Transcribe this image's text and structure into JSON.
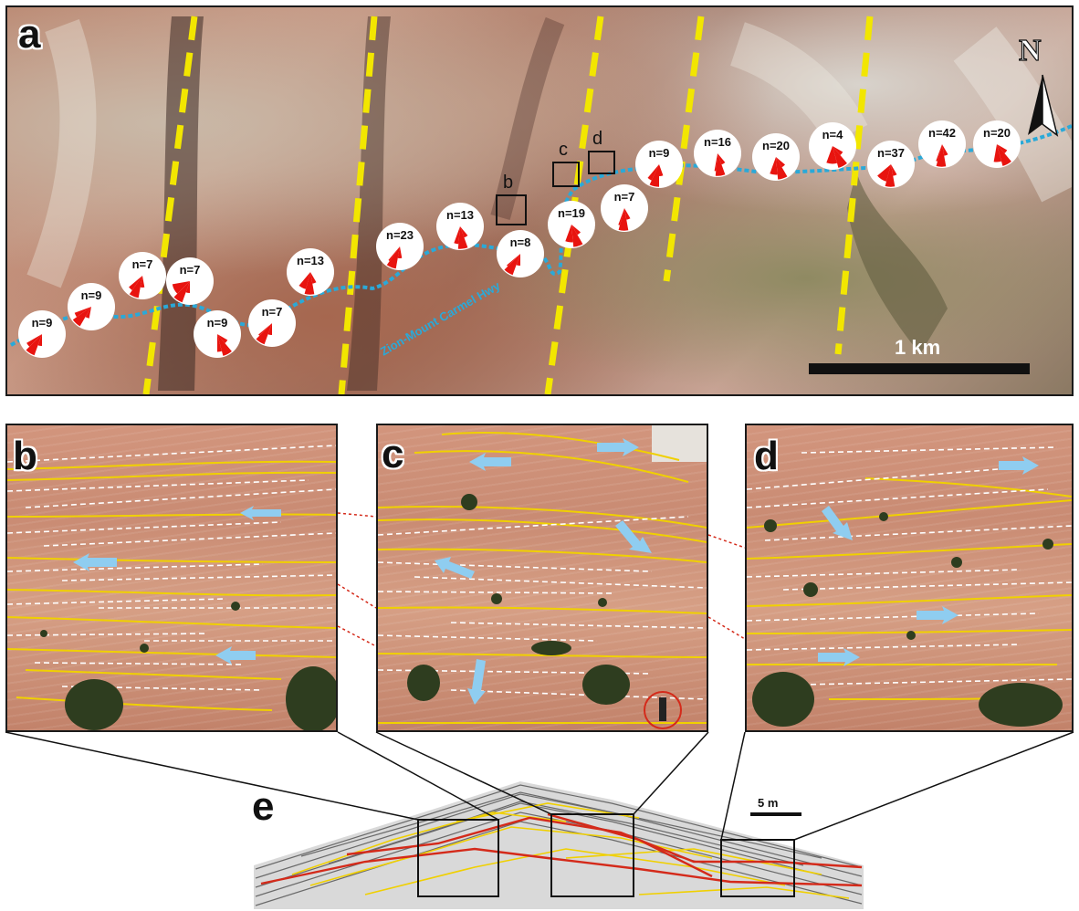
{
  "panels": {
    "a": "a",
    "b": "b",
    "c": "c",
    "d": "d",
    "e": "e"
  },
  "map": {
    "road_label": "Zion-Mount Carmel Hwy",
    "scale_label": "1 km",
    "north_label": "N",
    "box_labels": [
      "b",
      "c",
      "d"
    ],
    "roses": [
      {
        "label": "n=9"
      },
      {
        "label": "n=9"
      },
      {
        "label": "n=7"
      },
      {
        "label": "n=7"
      },
      {
        "label": "n=9"
      },
      {
        "label": "n=7"
      },
      {
        "label": "n=13"
      },
      {
        "label": "n=23"
      },
      {
        "label": "n=13"
      },
      {
        "label": "n=8"
      },
      {
        "label": "n=19"
      },
      {
        "label": "n=7"
      },
      {
        "label": "n=9"
      },
      {
        "label": "n=16"
      },
      {
        "label": "n=20"
      },
      {
        "label": "n=4"
      },
      {
        "label": "n=37"
      },
      {
        "label": "n=42"
      },
      {
        "label": "n=20"
      }
    ]
  },
  "cross_section": {
    "scale_label": "5 m"
  },
  "colors": {
    "fault_line": "#f2e600",
    "road": "#2aa9d8",
    "rose_petal": "#e8140f",
    "bounding_surface": "#f0d000",
    "foreset": "#ffffff",
    "paleocurrent_arrow": "#8fcdf0",
    "connector": "#d42a1a",
    "person_circle": "#d42a1a"
  }
}
